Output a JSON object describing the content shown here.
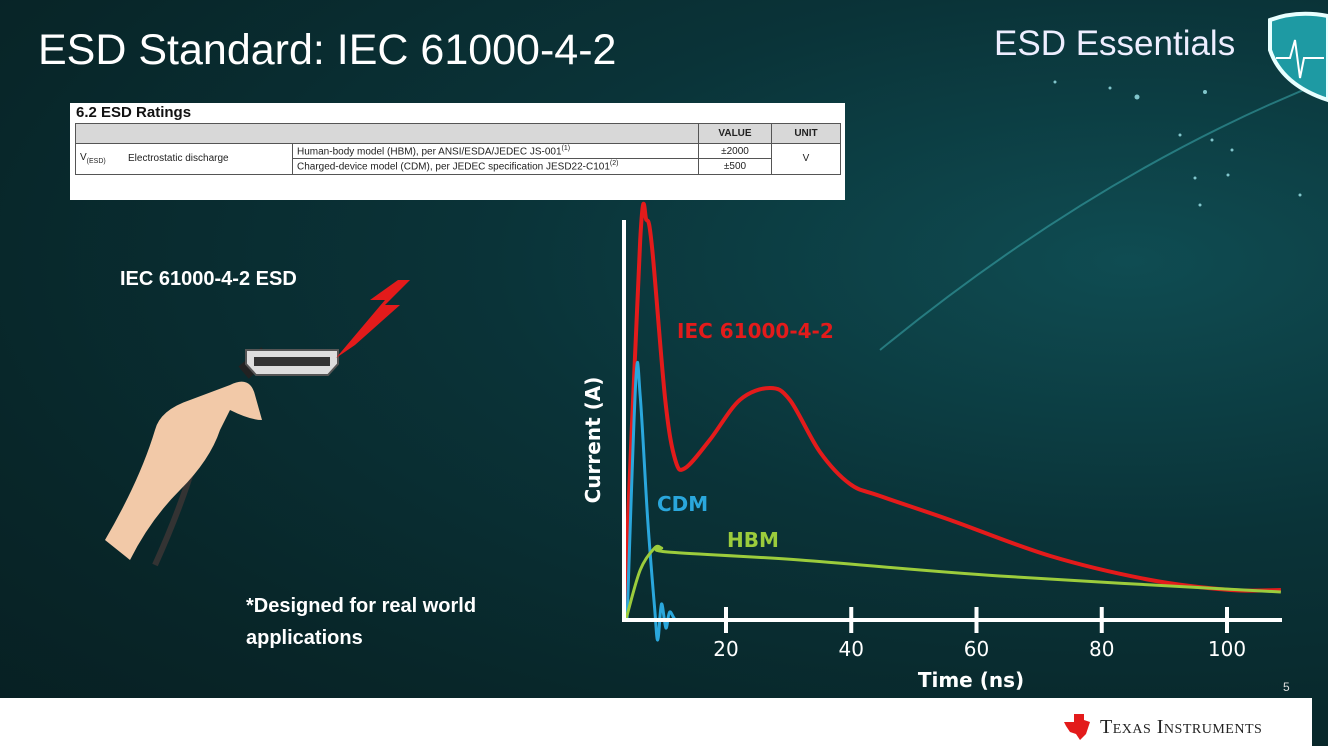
{
  "slide": {
    "title": "ESD Standard: IEC 61000-4-2",
    "brand": "ESD Essentials",
    "left_label": "IEC 61000-4-2 ESD",
    "note_line1": "*Designed for real world",
    "note_line2": "applications",
    "page_number": "5",
    "company": "Texas Instruments"
  },
  "table": {
    "caption": "6.2   ESD Ratings",
    "headers": [
      "",
      "VALUE",
      "UNIT"
    ],
    "symbol": "V",
    "symbol_sub": "(ESD)",
    "parameter": "Electrostatic discharge",
    "rows": [
      {
        "condition": "Human-body model (HBM), per ANSI/ESDA/JEDEC JS-001",
        "note": "(1)",
        "value": "±2000"
      },
      {
        "condition": "Charged-device model (CDM), per JEDEC specification JESD22-C101",
        "note": "(2)",
        "value": "±500"
      }
    ],
    "unit": "V"
  },
  "colors": {
    "iec": "#e31b1b",
    "cdm": "#2aa7dc",
    "hbm": "#9ccc3c",
    "background": "#0a3338"
  },
  "chart_data": {
    "type": "line",
    "xlabel": "Time (ns)",
    "ylabel": "Current (A)",
    "x_ticks": [
      20,
      40,
      60,
      80,
      100
    ],
    "xlim": [
      3.7,
      112
    ],
    "ylim": [
      0,
      1.05
    ],
    "grid": false,
    "legend": "inline labels",
    "series": [
      {
        "name": "IEC 61000-4-2",
        "color": "#e31b1b",
        "x": [
          3.7,
          6.3,
          7.3,
          8.2,
          10.3,
          11.9,
          13.5,
          17.4,
          22.2,
          27,
          30.2,
          35,
          39.8,
          44.6,
          55.8,
          71.8,
          87.8,
          100.6,
          108.6
        ],
        "y": [
          0,
          0.95,
          1.0,
          0.93,
          0.55,
          0.4,
          0.38,
          0.45,
          0.55,
          0.58,
          0.55,
          0.42,
          0.34,
          0.31,
          0.25,
          0.16,
          0.1,
          0.075,
          0.075
        ]
      },
      {
        "name": "CDM",
        "color": "#2aa7dc",
        "x": [
          4.2,
          5.6,
          6.3,
          7.5,
          8.6,
          9.1,
          9.7,
          10.4,
          11,
          12,
          13.9
        ],
        "y": [
          0,
          0.6,
          0.56,
          0.25,
          0.03,
          -0.05,
          0.04,
          -0.02,
          0.02,
          0,
          0
        ]
      },
      {
        "name": "HBM",
        "color": "#9ccc3c",
        "x": [
          4,
          6.3,
          8.6,
          9.7,
          10.7,
          31.8,
          63.7,
          108.6
        ],
        "y": [
          0,
          0.125,
          0.18,
          0.18,
          0.17,
          0.15,
          0.11,
          0.07
        ]
      }
    ]
  }
}
